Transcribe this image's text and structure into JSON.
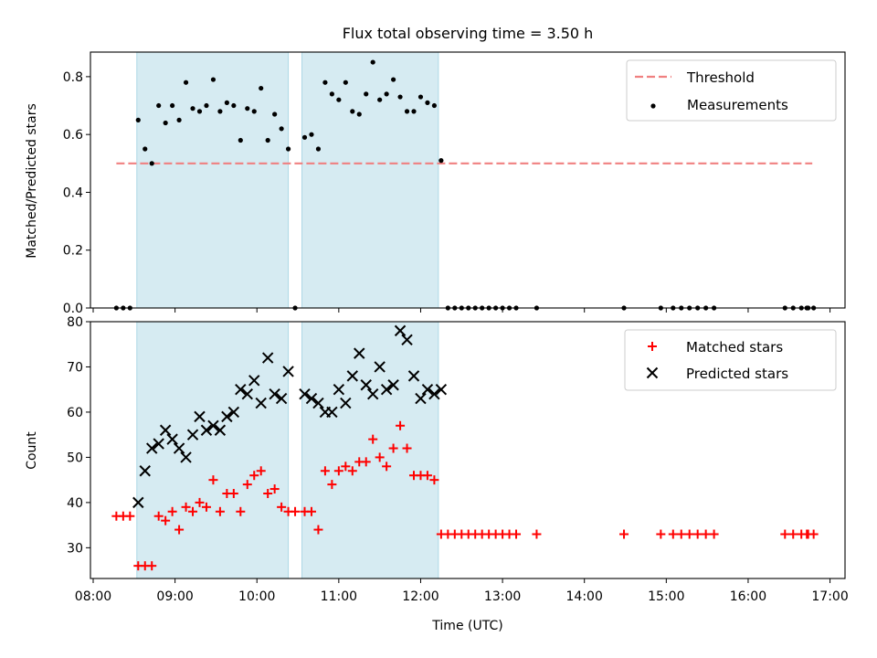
{
  "title": "Flux total observing time = 3.50 h",
  "colors": {
    "threshold": "#f08080",
    "shade": "#add8e6",
    "matched": "#ff0000",
    "predicted": "#000000",
    "measure": "#000000"
  },
  "chart_data": [
    {
      "type": "scatter",
      "ylabel": "Matched/Predicted stars",
      "xlabel": "",
      "xlim": [
        "07:58",
        "17:11"
      ],
      "ylim": [
        0,
        0.885
      ],
      "yticks": [
        0.0,
        0.2,
        0.4,
        0.6,
        0.8
      ],
      "ytick_labels": [
        "0.0",
        "0.2",
        "0.4",
        "0.6",
        "0.8"
      ],
      "shaded_intervals": [
        [
          "08:32",
          "10:23"
        ],
        [
          "10:33",
          "12:13"
        ]
      ],
      "threshold": {
        "name": "Threshold",
        "y": 0.5,
        "x_start": "08:17",
        "x_end": "16:47"
      },
      "legend": {
        "position": "top-right",
        "entries": [
          "Threshold",
          "Measurements"
        ]
      },
      "series": [
        {
          "name": "Measurements",
          "points": [
            [
              "08:17",
              0
            ],
            [
              "08:22",
              0
            ],
            [
              "08:27",
              0
            ],
            [
              "08:33",
              0.65
            ],
            [
              "08:38",
              0.55
            ],
            [
              "08:43",
              0.5
            ],
            [
              "08:48",
              0.7
            ],
            [
              "08:53",
              0.64
            ],
            [
              "08:58",
              0.7
            ],
            [
              "09:03",
              0.65
            ],
            [
              "09:08",
              0.78
            ],
            [
              "09:13",
              0.69
            ],
            [
              "09:18",
              0.68
            ],
            [
              "09:23",
              0.7
            ],
            [
              "09:28",
              0.79
            ],
            [
              "09:33",
              0.68
            ],
            [
              "09:38",
              0.71
            ],
            [
              "09:43",
              0.7
            ],
            [
              "09:48",
              0.58
            ],
            [
              "09:53",
              0.69
            ],
            [
              "09:58",
              0.68
            ],
            [
              "10:03",
              0.76
            ],
            [
              "10:08",
              0.58
            ],
            [
              "10:13",
              0.67
            ],
            [
              "10:18",
              0.62
            ],
            [
              "10:23",
              0.55
            ],
            [
              "10:28",
              0
            ],
            [
              "10:35",
              0.59
            ],
            [
              "10:40",
              0.6
            ],
            [
              "10:45",
              0.55
            ],
            [
              "10:50",
              0.78
            ],
            [
              "10:55",
              0.74
            ],
            [
              "11:00",
              0.72
            ],
            [
              "11:05",
              0.78
            ],
            [
              "11:10",
              0.68
            ],
            [
              "11:15",
              0.67
            ],
            [
              "11:20",
              0.74
            ],
            [
              "11:25",
              0.85
            ],
            [
              "11:30",
              0.72
            ],
            [
              "11:35",
              0.74
            ],
            [
              "11:40",
              0.79
            ],
            [
              "11:45",
              0.73
            ],
            [
              "11:50",
              0.68
            ],
            [
              "11:55",
              0.68
            ],
            [
              "12:00",
              0.73
            ],
            [
              "12:05",
              0.71
            ],
            [
              "12:10",
              0.7
            ],
            [
              "12:15",
              0.51
            ],
            [
              "12:20",
              0
            ],
            [
              "12:25",
              0
            ],
            [
              "12:30",
              0
            ],
            [
              "12:35",
              0
            ],
            [
              "12:40",
              0
            ],
            [
              "12:45",
              0
            ],
            [
              "12:50",
              0
            ],
            [
              "12:55",
              0
            ],
            [
              "13:00",
              0
            ],
            [
              "13:05",
              0
            ],
            [
              "13:10",
              0
            ],
            [
              "13:25",
              0
            ],
            [
              "14:29",
              0
            ],
            [
              "14:56",
              0
            ],
            [
              "15:05",
              0
            ],
            [
              "15:11",
              0
            ],
            [
              "15:17",
              0
            ],
            [
              "15:23",
              0
            ],
            [
              "15:29",
              0
            ],
            [
              "15:35",
              0
            ],
            [
              "16:27",
              0
            ],
            [
              "16:33",
              0
            ],
            [
              "16:39",
              0
            ],
            [
              "16:43",
              0
            ],
            [
              "16:44",
              0
            ],
            [
              "16:48",
              0
            ]
          ]
        }
      ]
    },
    {
      "type": "scatter",
      "ylabel": "Count",
      "xlabel": "Time (UTC)",
      "xlim": [
        "07:58",
        "17:11"
      ],
      "ylim": [
        23.2,
        80
      ],
      "yticks": [
        30,
        40,
        50,
        60,
        70,
        80
      ],
      "ytick_labels": [
        "30",
        "40",
        "50",
        "60",
        "70",
        "80"
      ],
      "xtick_labels": [
        "08:00",
        "09:00",
        "10:00",
        "11:00",
        "12:00",
        "13:00",
        "14:00",
        "15:00",
        "16:00",
        "17:00"
      ],
      "shaded_intervals": [
        [
          "08:32",
          "10:23"
        ],
        [
          "10:33",
          "12:13"
        ]
      ],
      "legend": {
        "position": "top-right",
        "entries": [
          "Matched stars",
          "Predicted stars"
        ]
      },
      "series": [
        {
          "name": "Matched stars",
          "points": [
            [
              "08:17",
              37
            ],
            [
              "08:22",
              37
            ],
            [
              "08:27",
              37
            ],
            [
              "08:33",
              26
            ],
            [
              "08:38",
              26
            ],
            [
              "08:43",
              26
            ],
            [
              "08:48",
              37
            ],
            [
              "08:53",
              36
            ],
            [
              "08:58",
              38
            ],
            [
              "09:03",
              34
            ],
            [
              "09:08",
              39
            ],
            [
              "09:13",
              38
            ],
            [
              "09:18",
              40
            ],
            [
              "09:23",
              39
            ],
            [
              "09:28",
              45
            ],
            [
              "09:33",
              38
            ],
            [
              "09:38",
              42
            ],
            [
              "09:43",
              42
            ],
            [
              "09:48",
              38
            ],
            [
              "09:53",
              44
            ],
            [
              "09:58",
              46
            ],
            [
              "10:03",
              47
            ],
            [
              "10:08",
              42
            ],
            [
              "10:13",
              43
            ],
            [
              "10:18",
              39
            ],
            [
              "10:23",
              38
            ],
            [
              "10:28",
              38
            ],
            [
              "10:35",
              38
            ],
            [
              "10:40",
              38
            ],
            [
              "10:45",
              34
            ],
            [
              "10:50",
              47
            ],
            [
              "10:55",
              44
            ],
            [
              "11:00",
              47
            ],
            [
              "11:05",
              48
            ],
            [
              "11:10",
              47
            ],
            [
              "11:15",
              49
            ],
            [
              "11:20",
              49
            ],
            [
              "11:25",
              54
            ],
            [
              "11:30",
              50
            ],
            [
              "11:35",
              48
            ],
            [
              "11:40",
              52
            ],
            [
              "11:45",
              57
            ],
            [
              "11:50",
              52
            ],
            [
              "11:55",
              46
            ],
            [
              "12:00",
              46
            ],
            [
              "12:05",
              46
            ],
            [
              "12:10",
              45
            ],
            [
              "12:15",
              33
            ],
            [
              "12:20",
              33
            ],
            [
              "12:25",
              33
            ],
            [
              "12:30",
              33
            ],
            [
              "12:35",
              33
            ],
            [
              "12:40",
              33
            ],
            [
              "12:45",
              33
            ],
            [
              "12:50",
              33
            ],
            [
              "12:55",
              33
            ],
            [
              "13:00",
              33
            ],
            [
              "13:05",
              33
            ],
            [
              "13:10",
              33
            ],
            [
              "13:25",
              33
            ],
            [
              "14:29",
              33
            ],
            [
              "14:56",
              33
            ],
            [
              "15:05",
              33
            ],
            [
              "15:11",
              33
            ],
            [
              "15:17",
              33
            ],
            [
              "15:23",
              33
            ],
            [
              "15:29",
              33
            ],
            [
              "15:35",
              33
            ],
            [
              "16:27",
              33
            ],
            [
              "16:33",
              33
            ],
            [
              "16:39",
              33
            ],
            [
              "16:43",
              33
            ],
            [
              "16:44",
              33
            ],
            [
              "16:48",
              33
            ]
          ]
        },
        {
          "name": "Predicted stars",
          "points": [
            [
              "08:33",
              40
            ],
            [
              "08:38",
              47
            ],
            [
              "08:43",
              52
            ],
            [
              "08:48",
              53
            ],
            [
              "08:53",
              56
            ],
            [
              "08:58",
              54
            ],
            [
              "09:03",
              52
            ],
            [
              "09:08",
              50
            ],
            [
              "09:13",
              55
            ],
            [
              "09:18",
              59
            ],
            [
              "09:23",
              56
            ],
            [
              "09:28",
              57
            ],
            [
              "09:33",
              56
            ],
            [
              "09:38",
              59
            ],
            [
              "09:43",
              60
            ],
            [
              "09:48",
              65
            ],
            [
              "09:53",
              64
            ],
            [
              "09:58",
              67
            ],
            [
              "10:03",
              62
            ],
            [
              "10:08",
              72
            ],
            [
              "10:13",
              64
            ],
            [
              "10:18",
              63
            ],
            [
              "10:23",
              69
            ],
            [
              "10:35",
              64
            ],
            [
              "10:40",
              63
            ],
            [
              "10:45",
              62
            ],
            [
              "10:50",
              60
            ],
            [
              "10:55",
              60
            ],
            [
              "11:00",
              65
            ],
            [
              "11:05",
              62
            ],
            [
              "11:10",
              68
            ],
            [
              "11:15",
              73
            ],
            [
              "11:20",
              66
            ],
            [
              "11:25",
              64
            ],
            [
              "11:30",
              70
            ],
            [
              "11:35",
              65
            ],
            [
              "11:40",
              66
            ],
            [
              "11:45",
              78
            ],
            [
              "11:50",
              76
            ],
            [
              "11:55",
              68
            ],
            [
              "12:00",
              63
            ],
            [
              "12:05",
              65
            ],
            [
              "12:10",
              64
            ],
            [
              "12:15",
              65
            ]
          ]
        }
      ]
    }
  ]
}
